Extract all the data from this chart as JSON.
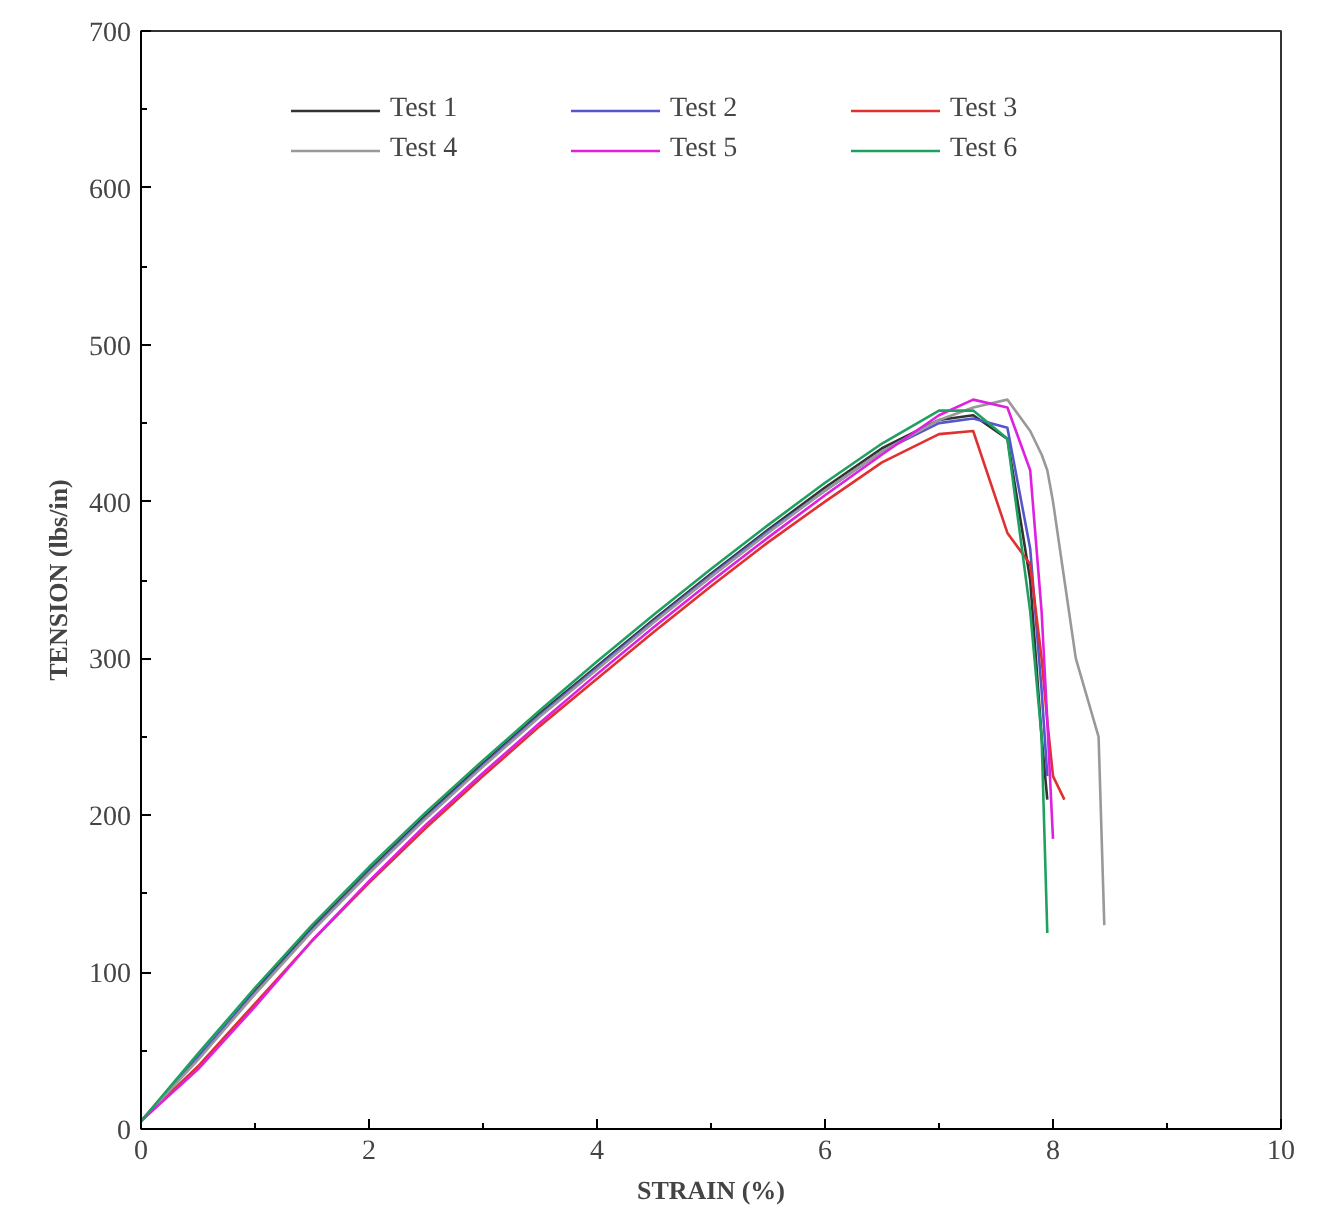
{
  "chart_data": {
    "type": "line",
    "xlabel": "STRAIN (%)",
    "ylabel": "TENSION (lbs/in)",
    "xlim": [
      0,
      10
    ],
    "ylim": [
      0,
      700
    ],
    "xticks": [
      0,
      2,
      4,
      6,
      8,
      10
    ],
    "yticks": [
      0,
      100,
      200,
      300,
      400,
      500,
      600,
      700
    ],
    "grid": false,
    "legend": "top",
    "marker": "none",
    "line_style": "solid",
    "x": [
      0,
      0.5,
      1,
      1.5,
      2,
      2.5,
      3,
      3.5,
      4,
      4.5,
      5,
      5.5,
      6,
      6.5,
      7,
      7.3,
      7.6,
      7.8,
      7.9,
      7.95,
      8.0,
      8.1,
      8.2,
      8.4,
      8.45
    ],
    "series": [
      {
        "name": "Test 1",
        "color": "#333333",
        "values": [
          5,
          45,
          88,
          128,
          165,
          200,
          233,
          265,
          295,
          325,
          354,
          382,
          409,
          434,
          452,
          455,
          440,
          350,
          250,
          210,
          null,
          null,
          null,
          null,
          null
        ]
      },
      {
        "name": "Test 2",
        "color": "#5555cc",
        "values": [
          5,
          46,
          87,
          127,
          164,
          199,
          232,
          264,
          294,
          324,
          353,
          381,
          407,
          432,
          450,
          453,
          447,
          370,
          280,
          225,
          null,
          null,
          null,
          null,
          null
        ]
      },
      {
        "name": "Test 3",
        "color": "#e03030",
        "values": [
          5,
          40,
          80,
          120,
          157,
          192,
          225,
          257,
          287,
          317,
          346,
          374,
          400,
          425,
          443,
          445,
          380,
          360,
          300,
          260,
          225,
          210,
          null,
          null,
          null
        ]
      },
      {
        "name": "Test 4",
        "color": "#999999",
        "values": [
          5,
          44,
          86,
          126,
          163,
          198,
          231,
          263,
          293,
          323,
          352,
          380,
          407,
          432,
          452,
          460,
          465,
          445,
          430,
          420,
          400,
          350,
          300,
          250,
          130
        ]
      },
      {
        "name": "Test 5",
        "color": "#e020e0",
        "values": [
          5,
          38,
          78,
          120,
          158,
          194,
          227,
          259,
          290,
          320,
          349,
          377,
          404,
          430,
          455,
          465,
          460,
          420,
          330,
          260,
          185,
          null,
          null,
          null,
          null
        ]
      },
      {
        "name": "Test 6",
        "color": "#20a060",
        "values": [
          5,
          48,
          90,
          130,
          167,
          202,
          235,
          267,
          298,
          328,
          357,
          385,
          412,
          437,
          458,
          458,
          440,
          330,
          250,
          125,
          null,
          null,
          null,
          null,
          null
        ]
      }
    ]
  }
}
